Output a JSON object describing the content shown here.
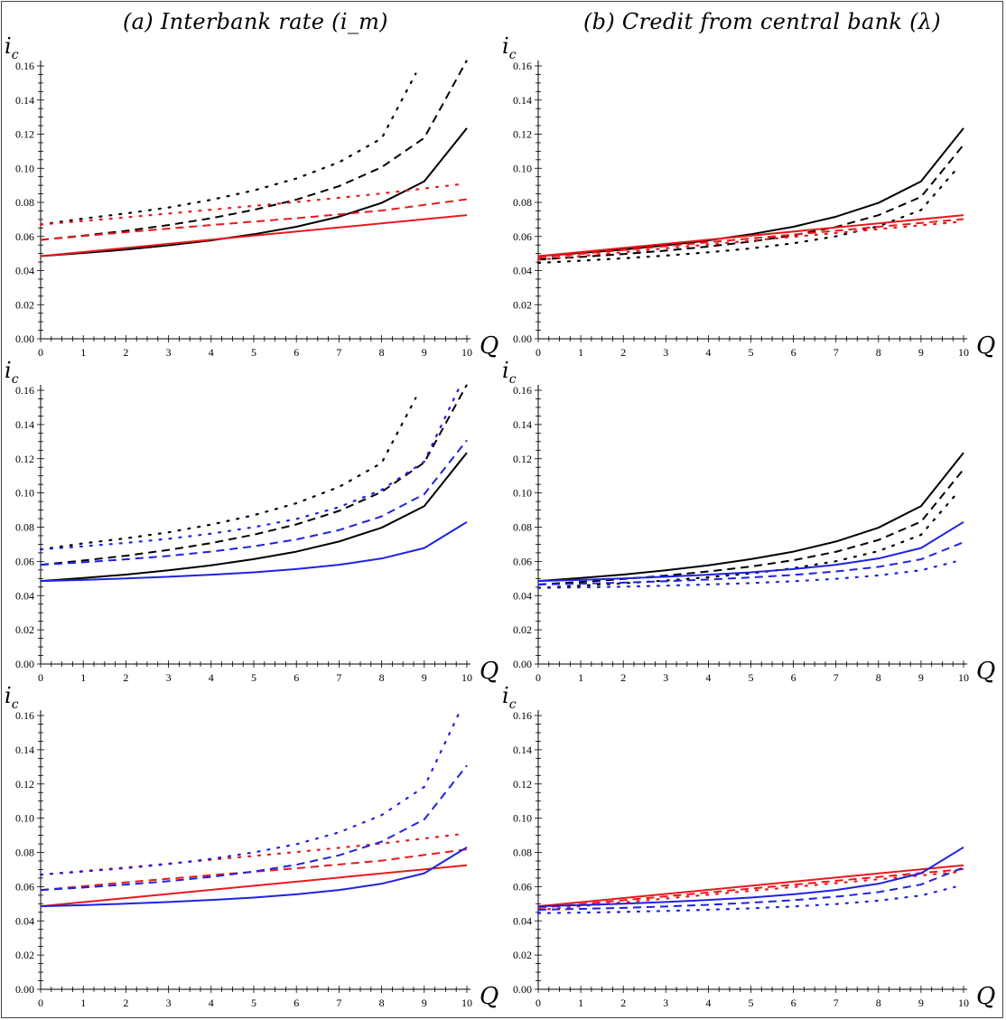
{
  "column_titles": [
    "(a) Interbank rate (i_m)",
    "(b) Credit from central bank (λ)"
  ],
  "colors": {
    "black": "#000000",
    "red": "#e8191c",
    "blue": "#1f22e0"
  },
  "chart_data": [
    {
      "type": "line",
      "panel": "row 1, column (a)",
      "xlabel": "Q",
      "ylabel": "i_c",
      "xlim": [
        0,
        10
      ],
      "ylim": [
        0,
        0.16
      ],
      "xticks": [
        "0",
        "1",
        "2",
        "3",
        "4",
        "5",
        "6",
        "7",
        "8",
        "9",
        "10"
      ],
      "yticks": [
        "0.00",
        "0.02",
        "0.04",
        "0.06",
        "0.08",
        "0.10",
        "0.12",
        "0.14",
        "0.16"
      ],
      "series": [
        {
          "color": "black",
          "dash": "solid",
          "x": [
            0,
            1,
            2,
            3,
            4,
            5,
            6,
            7,
            8,
            9,
            10
          ],
          "y": [
            0.0485,
            0.0503,
            0.0523,
            0.0548,
            0.0577,
            0.0613,
            0.0657,
            0.0716,
            0.0797,
            0.0923,
            0.1235
          ]
        },
        {
          "color": "black",
          "dash": "dashed",
          "x": [
            0,
            1,
            2,
            3,
            4,
            5,
            6,
            7,
            8,
            9,
            10
          ],
          "y": [
            0.058,
            0.0605,
            0.0633,
            0.0667,
            0.0707,
            0.0756,
            0.0816,
            0.0895,
            0.1006,
            0.1178,
            0.1633
          ]
        },
        {
          "color": "black",
          "dash": "dotted",
          "x": [
            0,
            1,
            2,
            3,
            4,
            5,
            6,
            7,
            8,
            8.8
          ],
          "y": [
            0.067,
            0.0705,
            0.0735,
            0.077,
            0.0815,
            0.087,
            0.094,
            0.1035,
            0.1175,
            0.1555
          ]
        },
        {
          "color": "red",
          "dash": "solid",
          "x": [
            0,
            10
          ],
          "y": [
            0.0485,
            0.0725
          ]
        },
        {
          "color": "red",
          "dash": "dashed",
          "x": [
            0,
            2,
            4,
            6,
            8,
            10
          ],
          "y": [
            0.058,
            0.0625,
            0.0667,
            0.0707,
            0.0752,
            0.0818
          ]
        },
        {
          "color": "red",
          "dash": "dotted",
          "x": [
            0,
            2,
            4,
            6,
            8,
            9.8
          ],
          "y": [
            0.067,
            0.0712,
            0.0757,
            0.0802,
            0.0852,
            0.0905
          ]
        }
      ]
    },
    {
      "type": "line",
      "panel": "row 1, column (b)",
      "xlabel": "Q",
      "ylabel": "i_c",
      "xlim": [
        0,
        10
      ],
      "ylim": [
        0,
        0.16
      ],
      "xticks": [
        "0",
        "1",
        "2",
        "3",
        "4",
        "5",
        "6",
        "7",
        "8",
        "9",
        "10"
      ],
      "yticks": [
        "0.00",
        "0.02",
        "0.04",
        "0.06",
        "0.08",
        "0.10",
        "0.12",
        "0.14",
        "0.16"
      ],
      "series": [
        {
          "color": "black",
          "dash": "solid",
          "x": [
            0,
            1,
            2,
            3,
            4,
            5,
            6,
            7,
            8,
            9,
            10
          ],
          "y": [
            0.0485,
            0.0503,
            0.0523,
            0.0548,
            0.0577,
            0.0613,
            0.0657,
            0.0716,
            0.0797,
            0.0923,
            0.1235
          ]
        },
        {
          "color": "black",
          "dash": "dashed",
          "x": [
            0,
            1,
            2,
            3,
            4,
            5,
            6,
            7,
            8,
            9,
            10
          ],
          "y": [
            0.0465,
            0.048,
            0.0497,
            0.0517,
            0.0541,
            0.057,
            0.0607,
            0.0656,
            0.0725,
            0.0832,
            0.1138
          ]
        },
        {
          "color": "black",
          "dash": "dotted",
          "x": [
            0,
            1,
            2,
            3,
            4,
            5,
            6,
            7,
            8,
            9,
            9.8
          ],
          "y": [
            0.0445,
            0.0458,
            0.0472,
            0.0488,
            0.0507,
            0.053,
            0.056,
            0.0601,
            0.066,
            0.0755,
            0.0985
          ]
        },
        {
          "color": "red",
          "dash": "solid",
          "x": [
            0,
            10
          ],
          "y": [
            0.0485,
            0.0725
          ]
        },
        {
          "color": "red",
          "dash": "dashed",
          "x": [
            0,
            10
          ],
          "y": [
            0.0475,
            0.0702
          ]
        },
        {
          "color": "red",
          "dash": "dotted",
          "x": [
            0,
            10
          ],
          "y": [
            0.0463,
            0.0688
          ]
        }
      ]
    },
    {
      "type": "line",
      "panel": "row 2, column (a)",
      "xlabel": "Q",
      "ylabel": "i_c",
      "xlim": [
        0,
        10
      ],
      "ylim": [
        0,
        0.16
      ],
      "xticks": [
        "0",
        "1",
        "2",
        "3",
        "4",
        "5",
        "6",
        "7",
        "8",
        "9",
        "10"
      ],
      "yticks": [
        "0.00",
        "0.02",
        "0.04",
        "0.06",
        "0.08",
        "0.10",
        "0.12",
        "0.14",
        "0.16"
      ],
      "series": [
        {
          "color": "black",
          "dash": "solid",
          "x": [
            0,
            1,
            2,
            3,
            4,
            5,
            6,
            7,
            8,
            9,
            10
          ],
          "y": [
            0.0485,
            0.0503,
            0.0523,
            0.0548,
            0.0577,
            0.0613,
            0.0657,
            0.0716,
            0.0797,
            0.0923,
            0.1235
          ]
        },
        {
          "color": "black",
          "dash": "dashed",
          "x": [
            0,
            1,
            2,
            3,
            4,
            5,
            6,
            7,
            8,
            9,
            10
          ],
          "y": [
            0.058,
            0.0605,
            0.0633,
            0.0667,
            0.0707,
            0.0756,
            0.0816,
            0.0895,
            0.1006,
            0.1178,
            0.1633
          ]
        },
        {
          "color": "black",
          "dash": "dotted",
          "x": [
            0,
            1,
            2,
            3,
            4,
            5,
            6,
            7,
            8,
            8.8
          ],
          "y": [
            0.067,
            0.0705,
            0.0735,
            0.077,
            0.0815,
            0.087,
            0.094,
            0.1035,
            0.1175,
            0.1555
          ]
        },
        {
          "color": "blue",
          "dash": "solid",
          "x": [
            0,
            1,
            2,
            3,
            4,
            5,
            6,
            7,
            8,
            9,
            10
          ],
          "y": [
            0.0485,
            0.0492,
            0.05,
            0.051,
            0.0522,
            0.0536,
            0.0555,
            0.058,
            0.0617,
            0.0678,
            0.083
          ]
        },
        {
          "color": "blue",
          "dash": "dashed",
          "x": [
            0,
            1,
            2,
            3,
            4,
            5,
            6,
            7,
            8,
            9,
            10
          ],
          "y": [
            0.058,
            0.0595,
            0.0612,
            0.0632,
            0.0657,
            0.0688,
            0.0728,
            0.0783,
            0.0863,
            0.0993,
            0.1308
          ]
        },
        {
          "color": "blue",
          "dash": "dotted",
          "x": [
            0,
            1,
            2,
            3,
            4,
            5,
            6,
            7,
            8,
            9,
            9.8
          ],
          "y": [
            0.067,
            0.0688,
            0.0708,
            0.0732,
            0.0762,
            0.08,
            0.0848,
            0.0917,
            0.1018,
            0.1183,
            0.1605
          ]
        }
      ]
    },
    {
      "type": "line",
      "panel": "row 2, column (b)",
      "xlabel": "Q",
      "ylabel": "i_c",
      "xlim": [
        0,
        10
      ],
      "ylim": [
        0,
        0.16
      ],
      "xticks": [
        "0",
        "1",
        "2",
        "3",
        "4",
        "5",
        "6",
        "7",
        "8",
        "9",
        "10"
      ],
      "yticks": [
        "0.00",
        "0.02",
        "0.04",
        "0.06",
        "0.08",
        "0.10",
        "0.12",
        "0.14",
        "0.16"
      ],
      "series": [
        {
          "color": "black",
          "dash": "solid",
          "x": [
            0,
            1,
            2,
            3,
            4,
            5,
            6,
            7,
            8,
            9,
            10
          ],
          "y": [
            0.0485,
            0.0503,
            0.0523,
            0.0548,
            0.0577,
            0.0613,
            0.0657,
            0.0716,
            0.0797,
            0.0923,
            0.1235
          ]
        },
        {
          "color": "black",
          "dash": "dashed",
          "x": [
            0,
            1,
            2,
            3,
            4,
            5,
            6,
            7,
            8,
            9,
            10
          ],
          "y": [
            0.0465,
            0.048,
            0.0497,
            0.0517,
            0.0541,
            0.057,
            0.0607,
            0.0656,
            0.0725,
            0.0832,
            0.1138
          ]
        },
        {
          "color": "black",
          "dash": "dotted",
          "x": [
            0,
            1,
            2,
            3,
            4,
            5,
            6,
            7,
            8,
            9,
            9.8
          ],
          "y": [
            0.0445,
            0.0458,
            0.0472,
            0.0488,
            0.0507,
            0.053,
            0.056,
            0.0601,
            0.066,
            0.0755,
            0.0985
          ]
        },
        {
          "color": "blue",
          "dash": "solid",
          "x": [
            0,
            1,
            2,
            3,
            4,
            5,
            6,
            7,
            8,
            9,
            10
          ],
          "y": [
            0.0485,
            0.0492,
            0.05,
            0.051,
            0.0522,
            0.0536,
            0.0555,
            0.058,
            0.0617,
            0.0678,
            0.083
          ]
        },
        {
          "color": "blue",
          "dash": "dashed",
          "x": [
            0,
            1,
            2,
            3,
            4,
            5,
            6,
            7,
            8,
            9,
            10
          ],
          "y": [
            0.0465,
            0.047,
            0.0476,
            0.0484,
            0.0494,
            0.0506,
            0.0521,
            0.0541,
            0.0568,
            0.0612,
            0.0712
          ]
        },
        {
          "color": "blue",
          "dash": "dotted",
          "x": [
            0,
            1,
            2,
            3,
            4,
            5,
            6,
            7,
            8,
            9,
            9.8
          ],
          "y": [
            0.0445,
            0.0448,
            0.0452,
            0.0458,
            0.0465,
            0.0473,
            0.0484,
            0.0498,
            0.0518,
            0.0548,
            0.0598
          ]
        }
      ]
    },
    {
      "type": "line",
      "panel": "row 3, column (a)",
      "xlabel": "Q",
      "ylabel": "i_c",
      "xlim": [
        0,
        10
      ],
      "ylim": [
        0,
        0.16
      ],
      "xticks": [
        "0",
        "1",
        "2",
        "3",
        "4",
        "5",
        "6",
        "7",
        "8",
        "9",
        "10"
      ],
      "yticks": [
        "0.00",
        "0.02",
        "0.04",
        "0.06",
        "0.08",
        "0.10",
        "0.12",
        "0.14",
        "0.16"
      ],
      "series": [
        {
          "color": "red",
          "dash": "solid",
          "x": [
            0,
            10
          ],
          "y": [
            0.0485,
            0.0725
          ]
        },
        {
          "color": "red",
          "dash": "dashed",
          "x": [
            0,
            2,
            4,
            6,
            8,
            10
          ],
          "y": [
            0.058,
            0.0625,
            0.0667,
            0.0707,
            0.0752,
            0.0818
          ]
        },
        {
          "color": "red",
          "dash": "dotted",
          "x": [
            0,
            2,
            4,
            6,
            8,
            9.8
          ],
          "y": [
            0.067,
            0.0712,
            0.0757,
            0.0802,
            0.0852,
            0.0905
          ]
        },
        {
          "color": "blue",
          "dash": "solid",
          "x": [
            0,
            1,
            2,
            3,
            4,
            5,
            6,
            7,
            8,
            9,
            10
          ],
          "y": [
            0.0485,
            0.0492,
            0.05,
            0.051,
            0.0522,
            0.0536,
            0.0555,
            0.058,
            0.0617,
            0.0678,
            0.083
          ]
        },
        {
          "color": "blue",
          "dash": "dashed",
          "x": [
            0,
            1,
            2,
            3,
            4,
            5,
            6,
            7,
            8,
            9,
            10
          ],
          "y": [
            0.058,
            0.0595,
            0.0612,
            0.0632,
            0.0657,
            0.0688,
            0.0728,
            0.0783,
            0.0863,
            0.0993,
            0.1308
          ]
        },
        {
          "color": "blue",
          "dash": "dotted",
          "x": [
            0,
            1,
            2,
            3,
            4,
            5,
            6,
            7,
            8,
            9,
            9.8
          ],
          "y": [
            0.067,
            0.0688,
            0.0708,
            0.0732,
            0.0762,
            0.08,
            0.0848,
            0.0917,
            0.1018,
            0.1183,
            0.1605
          ]
        }
      ]
    },
    {
      "type": "line",
      "panel": "row 3, column (b)",
      "xlabel": "Q",
      "ylabel": "i_c",
      "xlim": [
        0,
        10
      ],
      "ylim": [
        0,
        0.16
      ],
      "xticks": [
        "0",
        "1",
        "2",
        "3",
        "4",
        "5",
        "6",
        "7",
        "8",
        "9",
        "10"
      ],
      "yticks": [
        "0.00",
        "0.02",
        "0.04",
        "0.06",
        "0.08",
        "0.10",
        "0.12",
        "0.14",
        "0.16"
      ],
      "series": [
        {
          "color": "red",
          "dash": "solid",
          "x": [
            0,
            10
          ],
          "y": [
            0.0485,
            0.0725
          ]
        },
        {
          "color": "red",
          "dash": "dashed",
          "x": [
            0,
            10
          ],
          "y": [
            0.0475,
            0.0702
          ]
        },
        {
          "color": "red",
          "dash": "dotted",
          "x": [
            0,
            10
          ],
          "y": [
            0.0463,
            0.0688
          ]
        },
        {
          "color": "blue",
          "dash": "solid",
          "x": [
            0,
            1,
            2,
            3,
            4,
            5,
            6,
            7,
            8,
            9,
            10
          ],
          "y": [
            0.0485,
            0.0492,
            0.05,
            0.051,
            0.0522,
            0.0536,
            0.0555,
            0.058,
            0.0617,
            0.0678,
            0.083
          ]
        },
        {
          "color": "blue",
          "dash": "dashed",
          "x": [
            0,
            1,
            2,
            3,
            4,
            5,
            6,
            7,
            8,
            9,
            10
          ],
          "y": [
            0.0465,
            0.047,
            0.0476,
            0.0484,
            0.0494,
            0.0506,
            0.0521,
            0.0541,
            0.0568,
            0.0612,
            0.0712
          ]
        },
        {
          "color": "blue",
          "dash": "dotted",
          "x": [
            0,
            1,
            2,
            3,
            4,
            5,
            6,
            7,
            8,
            9,
            9.8
          ],
          "y": [
            0.0445,
            0.0448,
            0.0452,
            0.0458,
            0.0465,
            0.0473,
            0.0484,
            0.0498,
            0.0518,
            0.0548,
            0.0598
          ]
        }
      ]
    }
  ]
}
